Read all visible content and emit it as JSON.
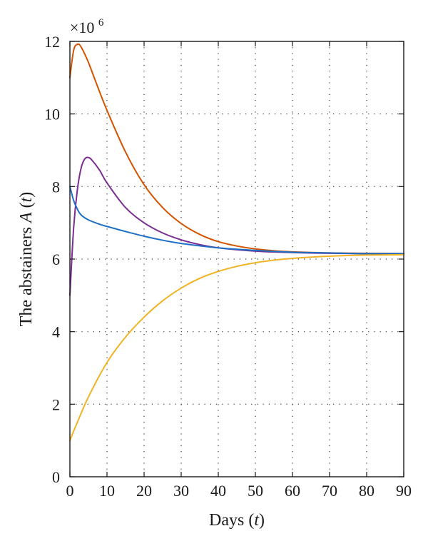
{
  "chart_data": {
    "type": "line",
    "xlabel": "Days",
    "xlabel_var": "t",
    "ylabel": "The abstainers",
    "ylabel_func": "A",
    "ylabel_var": "t",
    "y_multiplier_base": "×10",
    "y_multiplier_exponent": "6",
    "xlim": [
      0,
      90
    ],
    "ylim": [
      0,
      12
    ],
    "xticks": [
      0,
      10,
      20,
      30,
      40,
      50,
      60,
      70,
      80,
      90
    ],
    "yticks": [
      0,
      2,
      4,
      6,
      8,
      10,
      12
    ],
    "grid": true,
    "legend": "none",
    "series": [
      {
        "color": "#d35400",
        "points": [
          [
            0,
            11
          ],
          [
            1,
            11.75
          ],
          [
            2,
            11.92
          ],
          [
            3,
            11.85
          ],
          [
            5,
            11.42
          ],
          [
            7,
            10.88
          ],
          [
            10,
            10.1
          ],
          [
            15,
            8.95
          ],
          [
            20,
            8.05
          ],
          [
            25,
            7.42
          ],
          [
            30,
            6.98
          ],
          [
            35,
            6.68
          ],
          [
            40,
            6.48
          ],
          [
            45,
            6.36
          ],
          [
            50,
            6.28
          ],
          [
            55,
            6.23
          ],
          [
            60,
            6.2
          ],
          [
            70,
            6.17
          ],
          [
            80,
            6.16
          ],
          [
            90,
            6.15
          ]
        ]
      },
      {
        "color": "#7b2d91",
        "points": [
          [
            0,
            5
          ],
          [
            1,
            6.85
          ],
          [
            2,
            7.9
          ],
          [
            3,
            8.5
          ],
          [
            4,
            8.76
          ],
          [
            5,
            8.8
          ],
          [
            6,
            8.72
          ],
          [
            8,
            8.45
          ],
          [
            10,
            8.1
          ],
          [
            15,
            7.42
          ],
          [
            20,
            7.0
          ],
          [
            25,
            6.72
          ],
          [
            30,
            6.53
          ],
          [
            35,
            6.4
          ],
          [
            40,
            6.31
          ],
          [
            50,
            6.22
          ],
          [
            60,
            6.18
          ],
          [
            70,
            6.16
          ],
          [
            80,
            6.15
          ],
          [
            90,
            6.15
          ]
        ]
      },
      {
        "color": "#1f6fc5",
        "points": [
          [
            0,
            8
          ],
          [
            1,
            7.62
          ],
          [
            2,
            7.38
          ],
          [
            3,
            7.22
          ],
          [
            5,
            7.08
          ],
          [
            8,
            6.96
          ],
          [
            10,
            6.9
          ],
          [
            15,
            6.76
          ],
          [
            20,
            6.63
          ],
          [
            25,
            6.52
          ],
          [
            30,
            6.43
          ],
          [
            40,
            6.31
          ],
          [
            50,
            6.24
          ],
          [
            60,
            6.19
          ],
          [
            70,
            6.17
          ],
          [
            80,
            6.15
          ],
          [
            90,
            6.15
          ]
        ]
      },
      {
        "color": "#f0b323",
        "points": [
          [
            0,
            1
          ],
          [
            2,
            1.5
          ],
          [
            5,
            2.2
          ],
          [
            10,
            3.15
          ],
          [
            15,
            3.85
          ],
          [
            20,
            4.4
          ],
          [
            25,
            4.85
          ],
          [
            30,
            5.2
          ],
          [
            35,
            5.47
          ],
          [
            40,
            5.66
          ],
          [
            45,
            5.8
          ],
          [
            50,
            5.9
          ],
          [
            55,
            5.97
          ],
          [
            60,
            6.02
          ],
          [
            70,
            6.08
          ],
          [
            80,
            6.11
          ],
          [
            90,
            6.12
          ]
        ]
      }
    ]
  }
}
